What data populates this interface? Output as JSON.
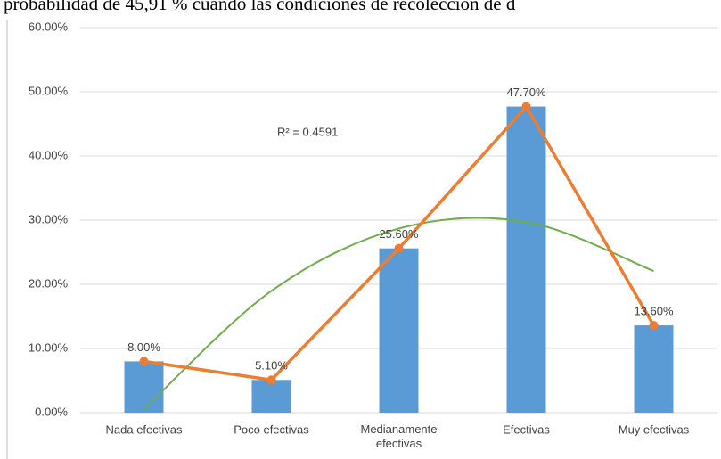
{
  "header_text": "probabilidad de 45,91 % cuando las condiciones de recolección de d",
  "chart_data": {
    "type": "bar",
    "categories": [
      "Nada efectivas",
      "Poco efectivas",
      "Medianamente efectivas",
      "Efectivas",
      "Muy efectivas"
    ],
    "series": [
      {
        "type": "bar",
        "color": "#5b9bd5",
        "values": [
          8.0,
          5.1,
          25.6,
          47.7,
          13.6
        ]
      },
      {
        "type": "line",
        "color": "#ed7d31",
        "values": [
          8.0,
          5.1,
          25.6,
          47.7,
          13.6
        ],
        "value_labels": [
          "8.00%",
          "5.10%",
          "25.60%",
          "47.70%",
          "13.60%"
        ]
      },
      {
        "type": "trend",
        "color": "#70ad47",
        "values": [
          0.55,
          18.96,
          28.69,
          29.72,
          22.07
        ]
      }
    ],
    "annotation": "R² = 0.4591",
    "ylim": [
      0,
      60
    ],
    "yticks": [
      {
        "value": 0,
        "label": "0.00%"
      },
      {
        "value": 10,
        "label": "10.00%"
      },
      {
        "value": 20,
        "label": "20.00%"
      },
      {
        "value": 30,
        "label": "30.00%"
      },
      {
        "value": 40,
        "label": "40.00%"
      },
      {
        "value": 50,
        "label": "50.00%"
      },
      {
        "value": 60,
        "label": "60.00%"
      }
    ],
    "grid": true
  }
}
